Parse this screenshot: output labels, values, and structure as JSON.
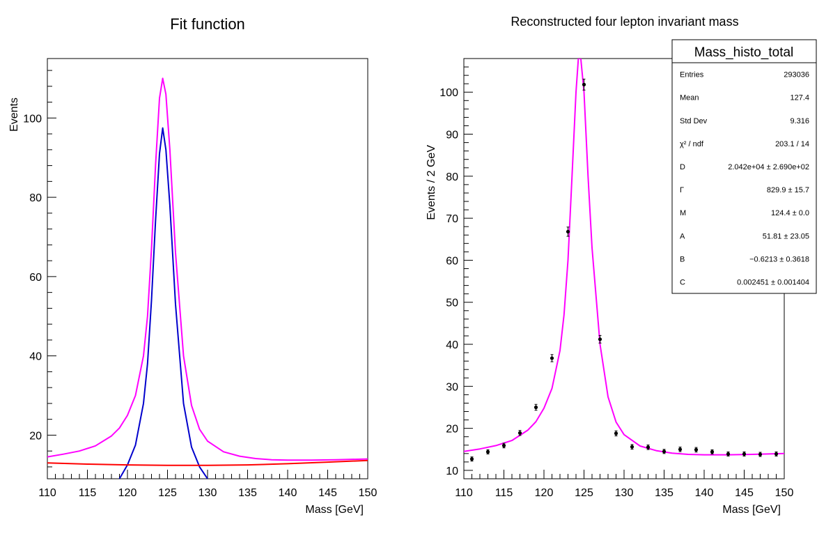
{
  "chart_data": [
    {
      "type": "line",
      "title": "Fit function",
      "xlabel": "Mass [GeV]",
      "ylabel": "Events",
      "xlim": [
        110,
        150
      ],
      "ylim": [
        9,
        115
      ],
      "xticks": [
        110,
        115,
        120,
        125,
        130,
        135,
        140,
        145,
        150
      ],
      "yticks": [
        20,
        40,
        60,
        80,
        100
      ],
      "grid": false,
      "legend": "none",
      "series": [
        {
          "color": "#ff00ff",
          "x": [
            110,
            112,
            114,
            116,
            118,
            119,
            120,
            121,
            122,
            122.5,
            123,
            123.5,
            124,
            124.4,
            124.8,
            125.3,
            126,
            127,
            128,
            129,
            130,
            132,
            134,
            136,
            138,
            140,
            143,
            146,
            150
          ],
          "y": [
            14.5,
            15.2,
            16.0,
            17.3,
            19.8,
            21.8,
            25.0,
            30.0,
            40.0,
            50.0,
            67.0,
            88.0,
            105.0,
            110.0,
            106.0,
            92.0,
            66.0,
            40.0,
            27.5,
            21.5,
            18.5,
            15.8,
            14.7,
            14.1,
            13.8,
            13.7,
            13.7,
            13.8,
            14.0
          ]
        },
        {
          "color": "#0000cc",
          "x": [
            119,
            120,
            121,
            122,
            122.5,
            123,
            123.5,
            124,
            124.4,
            124.8,
            125.3,
            126,
            127,
            128,
            129,
            130
          ],
          "y": [
            9,
            12.5,
            17.5,
            28,
            38,
            54,
            74,
            91,
            97.5,
            92,
            78,
            53,
            28,
            17,
            12,
            9
          ]
        },
        {
          "color": "#ff0000",
          "x": [
            110,
            115,
            120,
            125,
            130,
            135,
            140,
            145,
            150
          ],
          "y": [
            13.0,
            12.7,
            12.5,
            12.4,
            12.4,
            12.5,
            12.8,
            13.2,
            13.6
          ]
        }
      ]
    },
    {
      "type": "scatter",
      "title": "Reconstructed four lepton invariant mass",
      "xlabel": "Mass [GeV]",
      "ylabel": "Events / 2 GeV",
      "xlim": [
        110,
        150
      ],
      "ylim": [
        8,
        108
      ],
      "xticks": [
        110,
        115,
        120,
        125,
        130,
        135,
        140,
        145,
        150
      ],
      "yticks": [
        10,
        20,
        30,
        40,
        50,
        60,
        70,
        80,
        90,
        100
      ],
      "grid": false,
      "legend": "none",
      "points": {
        "x": [
          111,
          113,
          115,
          117,
          119,
          121,
          123,
          125,
          127,
          129,
          131,
          133,
          135,
          137,
          139,
          141,
          143,
          145,
          147,
          149
        ],
        "y": [
          12.7,
          14.4,
          15.9,
          18.9,
          25.0,
          36.7,
          66.8,
          101.8,
          41.2,
          18.8,
          15.6,
          15.5,
          14.5,
          15.0,
          14.9,
          14.4,
          13.9,
          13.9,
          13.8,
          13.9
        ],
        "err": [
          0.5,
          0.5,
          0.55,
          0.6,
          0.7,
          0.85,
          1.1,
          1.3,
          0.9,
          0.6,
          0.55,
          0.55,
          0.5,
          0.55,
          0.55,
          0.5,
          0.5,
          0.5,
          0.5,
          0.5
        ]
      },
      "fit": {
        "color": "#ff00ff",
        "x": [
          110,
          112,
          114,
          116,
          118,
          119,
          120,
          121,
          122,
          122.5,
          123,
          123.5,
          124,
          124.3,
          124.6,
          125,
          125.5,
          126,
          127,
          128,
          129,
          130,
          132,
          134,
          136,
          138,
          140,
          143,
          146,
          150
        ],
        "y": [
          14.5,
          15.1,
          15.9,
          17.1,
          19.6,
          21.6,
          24.8,
          29.5,
          38.5,
          47.0,
          60.0,
          80.0,
          100.0,
          108.0,
          108.0,
          100.0,
          80.0,
          63.0,
          40.0,
          27.5,
          21.5,
          18.5,
          15.8,
          14.7,
          14.1,
          13.8,
          13.7,
          13.7,
          13.8,
          14.0
        ]
      },
      "stats": {
        "title": "Mass_histo_total",
        "rows": [
          {
            "label": "Entries",
            "value": "293036"
          },
          {
            "label": "Mean",
            "value": "127.4"
          },
          {
            "label": "Std Dev",
            "value": "9.316"
          },
          {
            "label": "χ² / ndf",
            "value": "203.1 / 14"
          },
          {
            "label": "D",
            "value": "2.042e+04 ± 2.690e+02"
          },
          {
            "label": "Γ",
            "value": "829.9 ± 15.7"
          },
          {
            "label": "M",
            "value": "124.4 ± 0.0"
          },
          {
            "label": "A",
            "value": "51.81 ± 23.05"
          },
          {
            "label": "B",
            "value": "−0.6213 ± 0.3618"
          },
          {
            "label": "C",
            "value": "0.002451 ± 0.001404"
          }
        ]
      }
    }
  ]
}
